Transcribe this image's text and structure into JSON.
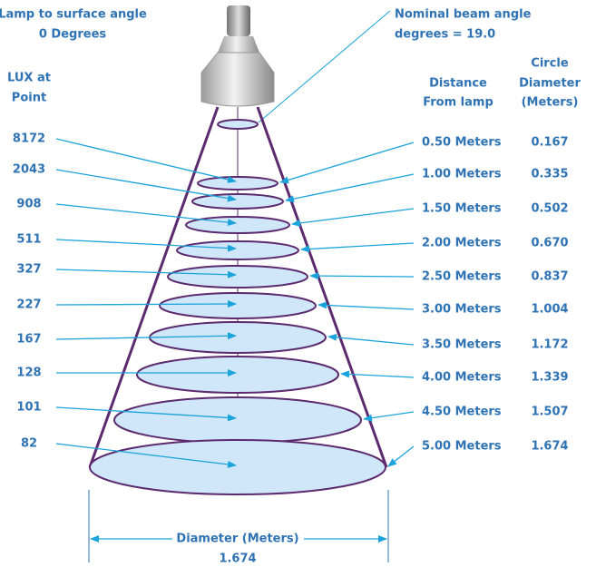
{
  "header": {
    "angle_title": "Lamp to surface angle",
    "angle_value": "0 Degrees",
    "beam_title": "Nominal beam angle",
    "beam_value": "degrees = 19.0"
  },
  "columns": {
    "lux": [
      "LUX at",
      "Point"
    ],
    "distance": [
      "Distance",
      "From lamp"
    ],
    "diameter": [
      "Circle",
      "Diameter",
      "(Meters)"
    ]
  },
  "rows": [
    {
      "lux": "8172",
      "distance": "0.50 Meters",
      "diameter": "0.167"
    },
    {
      "lux": "2043",
      "distance": "1.00 Meters",
      "diameter": "0.335"
    },
    {
      "lux": "908",
      "distance": "1.50 Meters",
      "diameter": "0.502"
    },
    {
      "lux": "511",
      "distance": "2.00 Meters",
      "diameter": "0.670"
    },
    {
      "lux": "327",
      "distance": "2.50 Meters",
      "diameter": "0.837"
    },
    {
      "lux": "227",
      "distance": "3.00 Meters",
      "diameter": "1.004"
    },
    {
      "lux": "167",
      "distance": "3.50 Meters",
      "diameter": "1.172"
    },
    {
      "lux": "128",
      "distance": "4.00 Meters",
      "diameter": "1.339"
    },
    {
      "lux": "101",
      "distance": "4.50 Meters",
      "diameter": "1.507"
    },
    {
      "lux": "82",
      "distance": "5.00 Meters",
      "diameter": "1.674"
    }
  ],
  "footer": {
    "label": "Diameter (Meters)",
    "value": "1.674"
  }
}
